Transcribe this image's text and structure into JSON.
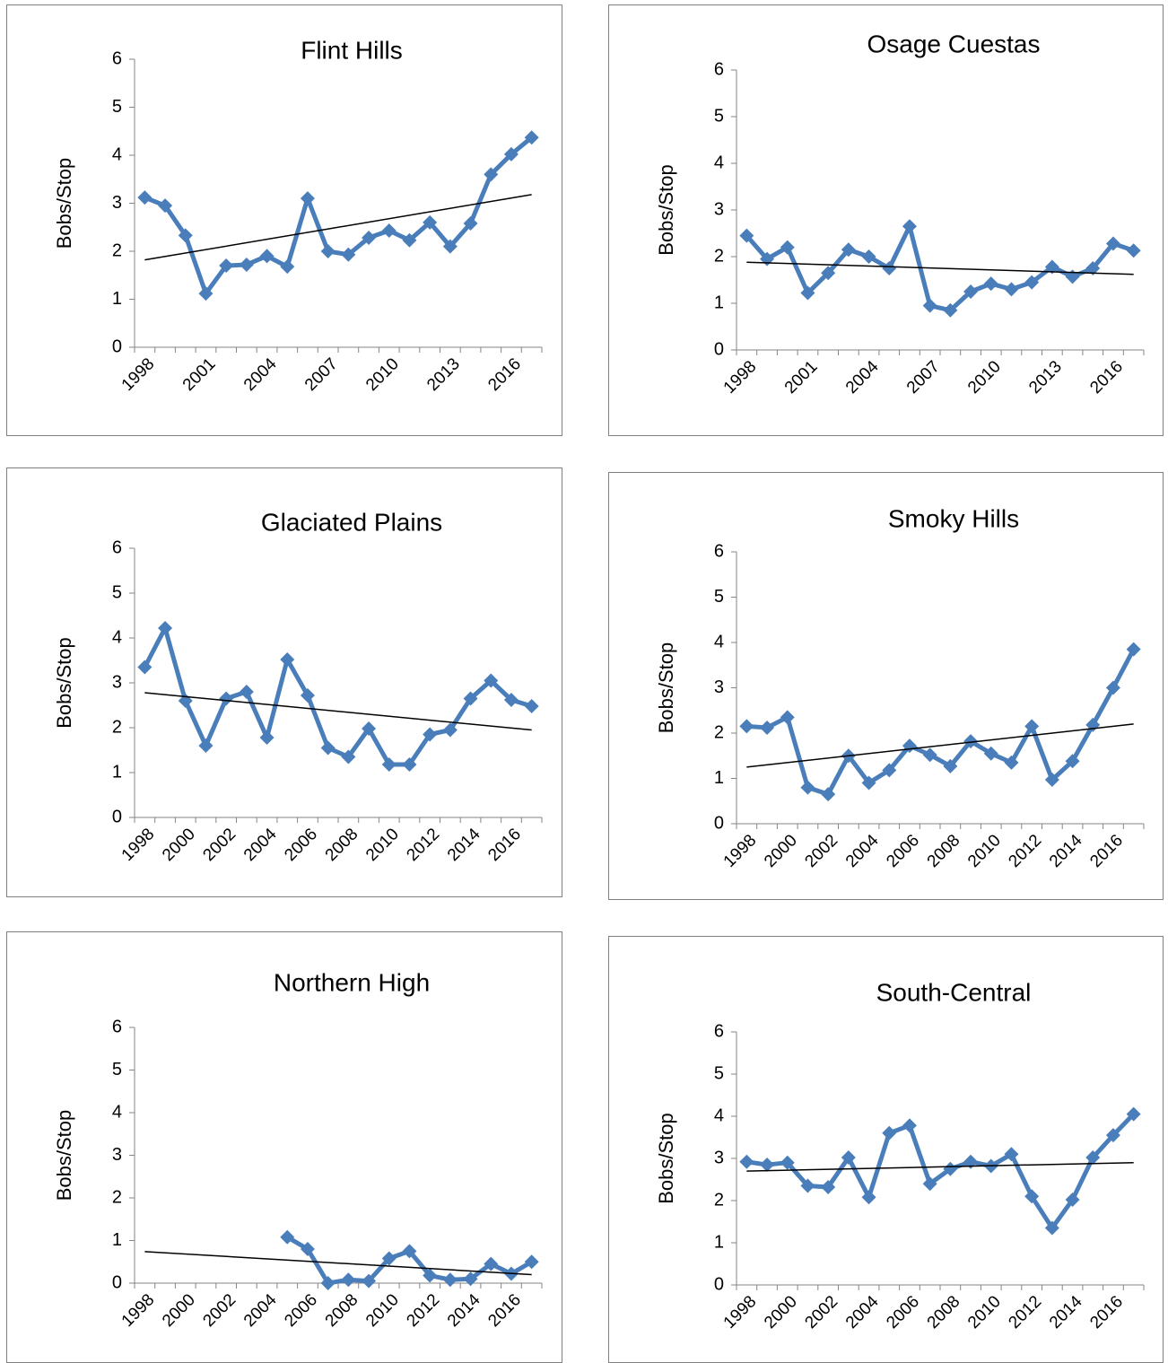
{
  "chart_data": [
    {
      "type": "line",
      "title": "Flint Hills",
      "y_label": "Bobs/Stop",
      "categories": [
        "1998",
        null,
        null,
        "2001",
        null,
        null,
        "2004",
        null,
        null,
        "2007",
        null,
        null,
        "2010",
        null,
        null,
        "2013",
        null,
        null,
        "2016",
        null
      ],
      "values": [
        3.12,
        2.95,
        2.33,
        1.12,
        1.7,
        1.72,
        1.9,
        1.68,
        3.1,
        2.0,
        1.93,
        2.28,
        2.43,
        2.23,
        2.6,
        2.1,
        2.58,
        3.6,
        4.02,
        4.37
      ],
      "trend": [
        1.82,
        3.18
      ],
      "color": "#4a7ebb",
      "trend_color": "#000000",
      "ylim": [
        0,
        6
      ],
      "yticks": [
        0,
        1,
        2,
        3,
        4,
        5,
        6
      ]
    },
    {
      "type": "line",
      "title": "Osage Cuestas",
      "y_label": "Bobs/Stop",
      "categories": [
        "1998",
        null,
        null,
        "2001",
        null,
        null,
        "2004",
        null,
        null,
        "2007",
        null,
        null,
        "2010",
        null,
        null,
        "2013",
        null,
        null,
        "2016",
        null
      ],
      "values": [
        2.45,
        1.95,
        2.2,
        1.22,
        1.65,
        2.15,
        2.0,
        1.75,
        2.65,
        0.95,
        0.85,
        1.25,
        1.42,
        1.3,
        1.45,
        1.78,
        1.57,
        1.75,
        2.28,
        2.13
      ],
      "trend": [
        1.88,
        1.62
      ],
      "color": "#4a7ebb",
      "trend_color": "#000000",
      "ylim": [
        0,
        6
      ],
      "yticks": [
        0,
        1,
        2,
        3,
        4,
        5,
        6
      ]
    },
    {
      "type": "line",
      "title": "Glaciated Plains",
      "y_label": "Bobs/Stop",
      "categories": [
        "1998",
        null,
        "2000",
        null,
        "2002",
        null,
        "2004",
        null,
        "2006",
        null,
        "2008",
        null,
        "2010",
        null,
        "2012",
        null,
        "2014",
        null,
        "2016",
        null
      ],
      "values": [
        3.35,
        4.22,
        2.6,
        1.6,
        2.65,
        2.8,
        1.78,
        3.52,
        2.72,
        1.55,
        1.35,
        1.98,
        1.18,
        1.18,
        1.85,
        1.95,
        2.65,
        3.05,
        2.62,
        2.48
      ],
      "trend": [
        2.78,
        1.95
      ],
      "color": "#4a7ebb",
      "trend_color": "#000000",
      "ylim": [
        0,
        6
      ],
      "yticks": [
        0,
        1,
        2,
        3,
        4,
        5,
        6
      ]
    },
    {
      "type": "line",
      "title": "Smoky Hills",
      "y_label": "Bobs/Stop",
      "categories": [
        "1998",
        null,
        "2000",
        null,
        "2002",
        null,
        "2004",
        null,
        "2006",
        null,
        "2008",
        null,
        "2010",
        null,
        "2012",
        null,
        "2014",
        null,
        "2016",
        null
      ],
      "values": [
        2.15,
        2.12,
        2.35,
        0.8,
        0.65,
        1.5,
        0.9,
        1.18,
        1.72,
        1.52,
        1.27,
        1.82,
        1.55,
        1.35,
        2.15,
        0.97,
        1.38,
        2.18,
        3.0,
        3.85
      ],
      "trend": [
        1.25,
        2.2
      ],
      "color": "#4a7ebb",
      "trend_color": "#000000",
      "ylim": [
        0,
        6
      ],
      "yticks": [
        0,
        1,
        2,
        3,
        4,
        5,
        6
      ]
    },
    {
      "type": "line",
      "title": "Northern High",
      "y_label": "Bobs/Stop",
      "categories": [
        "1998",
        null,
        "2000",
        null,
        "2002",
        null,
        "2004",
        null,
        "2006",
        null,
        "2008",
        null,
        "2010",
        null,
        "2012",
        null,
        "2014",
        null,
        "2016",
        null
      ],
      "values": [
        null,
        null,
        null,
        null,
        null,
        null,
        null,
        1.08,
        0.8,
        0.0,
        0.08,
        0.05,
        0.58,
        0.75,
        0.18,
        0.08,
        0.1,
        0.45,
        0.22,
        0.5
      ],
      "trend": [
        0.74,
        0.2
      ],
      "color": "#4a7ebb",
      "trend_color": "#000000",
      "ylim": [
        0,
        6
      ],
      "yticks": [
        0,
        1,
        2,
        3,
        4,
        5,
        6
      ]
    },
    {
      "type": "line",
      "title": "South-Central",
      "y_label": "Bobs/Stop",
      "categories": [
        "1998",
        null,
        "2000",
        null,
        "2002",
        null,
        "2004",
        null,
        "2006",
        null,
        "2008",
        null,
        "2010",
        null,
        "2012",
        null,
        "2014",
        null,
        "2016",
        null
      ],
      "values": [
        2.92,
        2.85,
        2.9,
        2.35,
        2.32,
        3.02,
        2.08,
        3.6,
        3.78,
        2.4,
        2.75,
        2.92,
        2.82,
        3.1,
        2.1,
        1.35,
        2.02,
        3.02,
        3.55,
        4.05
      ],
      "trend": [
        2.7,
        2.9
      ],
      "color": "#4a7ebb",
      "trend_color": "#000000",
      "ylim": [
        0,
        6
      ],
      "yticks": [
        0,
        1,
        2,
        3,
        4,
        5,
        6
      ]
    }
  ]
}
